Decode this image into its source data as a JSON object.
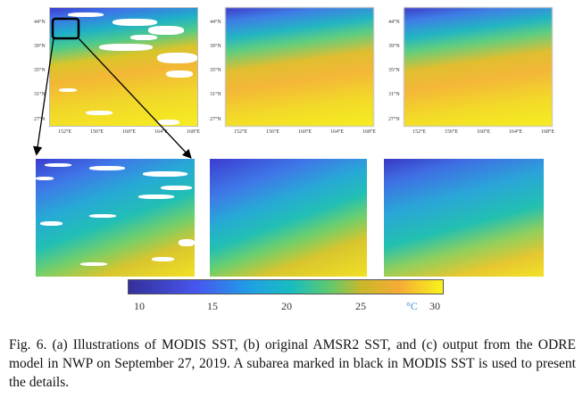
{
  "panels": {
    "y_ticks": [
      "44°N",
      "39°N",
      "35°N",
      "31°N",
      "27°N"
    ],
    "x_ticks": [
      "152°E",
      "156°E",
      "160°E",
      "164°E",
      "168°E"
    ]
  },
  "colorbar": {
    "ticks": [
      "10",
      "15",
      "20",
      "25",
      "30"
    ],
    "unit": "°C",
    "range": [
      9,
      31
    ],
    "colors": [
      "#35309a",
      "#4757f0",
      "#1f9ee6",
      "#18bdbf",
      "#60c96e",
      "#c8b82a",
      "#f6ab35",
      "#f7f41c"
    ]
  },
  "caption": "Fig. 6.   (a) Illustrations of MODIS SST, (b) original AMSR2 SST, and (c) output from the ODRE model in NWP on September 27, 2019. A subarea marked in black in MODIS SST is used to present the details."
}
